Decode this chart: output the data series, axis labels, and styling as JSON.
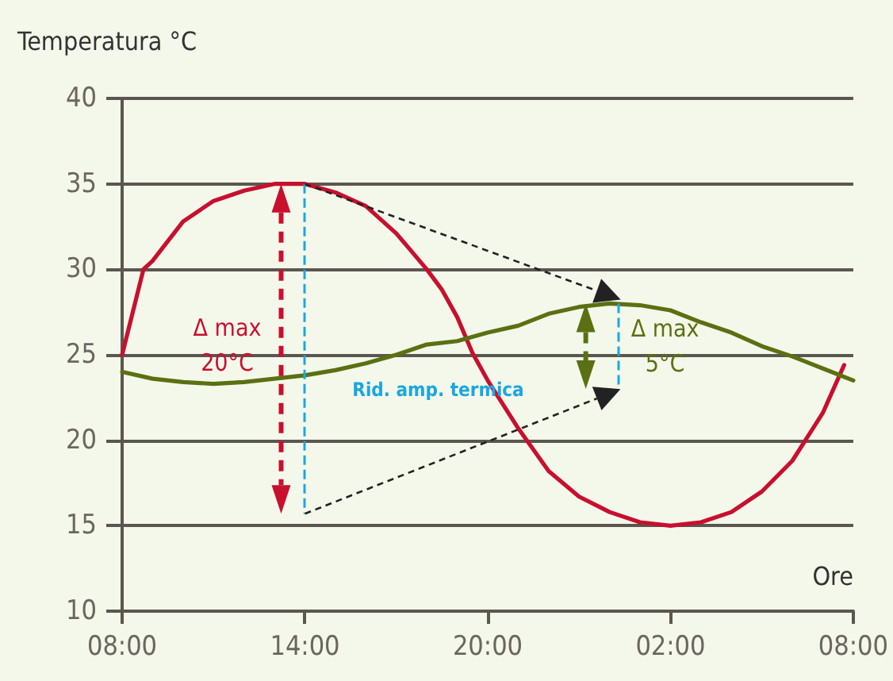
{
  "chart_data": {
    "type": "line",
    "ylabel": "Temperatura °C",
    "xlabel": "Ore",
    "x": [
      "2000-01-01T08:00",
      "2000-01-01T08:42",
      "2000-01-01T09:00",
      "2000-01-01T10:00",
      "2000-01-01T11:00",
      "2000-01-01T12:00",
      "2000-01-01T13:00",
      "2000-01-01T14:00",
      "2000-01-01T15:00",
      "2000-01-01T16:00",
      "2000-01-01T17:00",
      "2000-01-01T18:00",
      "2000-01-01T18:30",
      "2000-01-01T19:00",
      "2000-01-01T19:30",
      "2000-01-01T20:00",
      "2000-01-01T21:00",
      "2000-01-01T22:00",
      "2000-01-01T23:00",
      "2000-01-02T00:00",
      "2000-01-02T01:00",
      "2000-01-02T02:00",
      "2000-01-02T03:00",
      "2000-01-02T04:00",
      "2000-01-02T05:00",
      "2000-01-02T06:00",
      "2000-01-02T07:00",
      "2000-01-02T07:42"
    ],
    "series": [
      {
        "color": "#c8102e",
        "values": [
          25,
          30,
          30.5,
          32.8,
          34,
          34.6,
          35,
          35,
          34.5,
          33.7,
          32.1,
          30,
          28.8,
          27.2,
          25.1,
          23.5,
          20.7,
          18.2,
          16.7,
          15.8,
          15.2,
          15,
          15.2,
          15.8,
          17,
          18.8,
          21.6,
          24.4
        ]
      },
      {
        "color": "#5a7012",
        "x": [
          "2000-01-01T08:00",
          "2000-01-01T09:00",
          "2000-01-01T10:00",
          "2000-01-01T11:00",
          "2000-01-01T12:00",
          "2000-01-01T13:00",
          "2000-01-01T14:00",
          "2000-01-01T15:00",
          "2000-01-01T16:00",
          "2000-01-01T17:00",
          "2000-01-01T18:00",
          "2000-01-01T19:00",
          "2000-01-01T20:00",
          "2000-01-01T21:00",
          "2000-01-01T22:00",
          "2000-01-01T23:00",
          "2000-01-02T00:00",
          "2000-01-02T01:00",
          "2000-01-02T02:00",
          "2000-01-02T03:00",
          "2000-01-02T04:00",
          "2000-01-02T05:00",
          "2000-01-02T06:00",
          "2000-01-02T07:00",
          "2000-01-02T08:00"
        ],
        "values": [
          24,
          23.6,
          23.4,
          23.3,
          23.4,
          23.6,
          23.8,
          24.1,
          24.5,
          25,
          25.6,
          25.8,
          26.3,
          26.7,
          27.4,
          27.8,
          28,
          27.9,
          27.6,
          26.9,
          26.3,
          25.5,
          24.9,
          24.2,
          23.5
        ]
      }
    ],
    "annotations": [
      "Δ max\n20°C",
      "Δ max\n5°C",
      "Rid. amp. termica"
    ],
    "ref_lines": [
      {
        "axis": "x",
        "value": "2000-01-01T14:00",
        "color": "#1aa7e0",
        "line_style": "dashed"
      },
      {
        "axis": "x",
        "value": "2000-01-02T00:16",
        "color": "#1aa7e0",
        "line_style": "dashed"
      }
    ],
    "xlim": [
      "2000-01-01T08:00",
      "2000-01-02T08:00"
    ],
    "xticks": [
      {
        "value": "2000-01-01T08:00",
        "label": "08:00"
      },
      {
        "value": "2000-01-01T14:00",
        "label": "14:00"
      },
      {
        "value": "2000-01-01T20:00",
        "label": "20:00"
      },
      {
        "value": "2000-01-02T02:00",
        "label": "02:00"
      },
      {
        "value": "2000-01-02T08:00",
        "label": "08:00"
      }
    ],
    "ylim": [
      10,
      40
    ],
    "yticks": [
      10,
      15,
      20,
      25,
      30,
      35,
      40
    ],
    "grid": "y",
    "marker": "none",
    "line_style": "solid"
  }
}
